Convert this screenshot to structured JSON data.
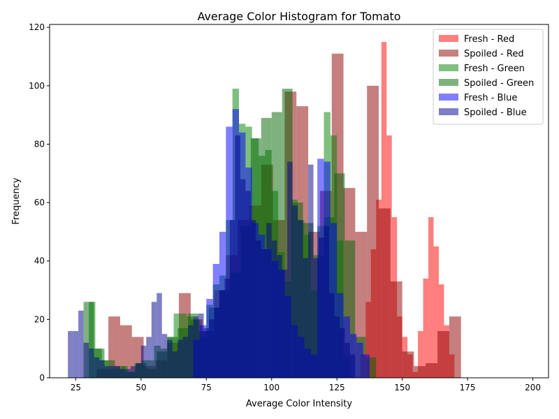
{
  "chart_data": {
    "type": "bar",
    "title": "Average Color Histogram for Tomato",
    "xlabel": "Average Color Intensity",
    "ylabel": "Frequency",
    "xlim": [
      15,
      206
    ],
    "ylim": [
      0,
      121
    ],
    "xticks": [
      25,
      50,
      75,
      100,
      125,
      150,
      175,
      200
    ],
    "yticks": [
      0,
      20,
      40,
      60,
      80,
      100,
      120
    ],
    "bar_opacity": 0.5,
    "legend_position": "top-right",
    "series": [
      {
        "name": "Fresh - Red",
        "color": "#ff0000",
        "bin_start": 134,
        "bin_width": 2,
        "counts": [
          8,
          26,
          44,
          61,
          115,
          83,
          55,
          21,
          14,
          8,
          2,
          16,
          34,
          55,
          45,
          32,
          18,
          8
        ]
      },
      {
        "name": "Spoiled - Red",
        "color": "#8b0000",
        "bin_start": 33,
        "bin_width": 4.5,
        "counts": [
          3,
          21,
          18,
          14,
          4,
          6,
          12,
          29,
          20,
          16,
          30,
          42,
          54,
          59,
          73,
          54,
          98,
          93,
          50,
          64,
          111,
          65,
          50,
          100,
          58,
          33,
          9,
          4,
          5,
          16,
          21
        ]
      },
      {
        "name": "Fresh - Green",
        "color": "#008000",
        "bin_start": 30,
        "bin_width": 2.5,
        "counts": [
          26,
          10,
          6,
          3,
          3,
          4,
          2,
          5,
          6,
          6,
          11,
          10,
          14,
          22,
          22,
          21,
          20,
          14,
          25,
          32,
          35,
          54,
          99,
          87,
          86,
          82,
          76,
          78,
          64,
          43,
          33,
          61,
          54,
          49,
          30,
          52,
          91,
          83,
          47,
          7
        ]
      },
      {
        "name": "Spoiled - Green",
        "color": "#006400",
        "bin_start": 28,
        "bin_width": 4,
        "counts": [
          26,
          10,
          6,
          4,
          2,
          5,
          3,
          9,
          14,
          17,
          22,
          16,
          24,
          30,
          36,
          52,
          82,
          89,
          91,
          99,
          60,
          53,
          42,
          55,
          70,
          47,
          14,
          7
        ]
      },
      {
        "name": "Fresh - Blue",
        "color": "#0000ff",
        "bin_start": 70,
        "bin_width": 2.5,
        "counts": [
          13,
          18,
          27,
          39,
          50,
          86,
          92,
          84,
          72,
          53,
          49,
          44,
          40,
          37,
          28,
          18,
          14,
          10,
          8,
          75,
          74,
          53,
          29,
          21,
          15,
          12,
          8
        ]
      },
      {
        "name": "Spoiled - Blue",
        "color": "#00008b",
        "bin_start": 22,
        "bin_width": 2,
        "counts": [
          16,
          16,
          23,
          12,
          10,
          7,
          6,
          4,
          4,
          4,
          3,
          3,
          4,
          5,
          11,
          14,
          26,
          29,
          15,
          13,
          9,
          13,
          14,
          18,
          21,
          22,
          17,
          20,
          24,
          30,
          34,
          54,
          83,
          68,
          64,
          54,
          47,
          44,
          53,
          47,
          42,
          37,
          74,
          59,
          54,
          41,
          73,
          41,
          48,
          52,
          29,
          21,
          17,
          12,
          8
        ]
      }
    ]
  }
}
